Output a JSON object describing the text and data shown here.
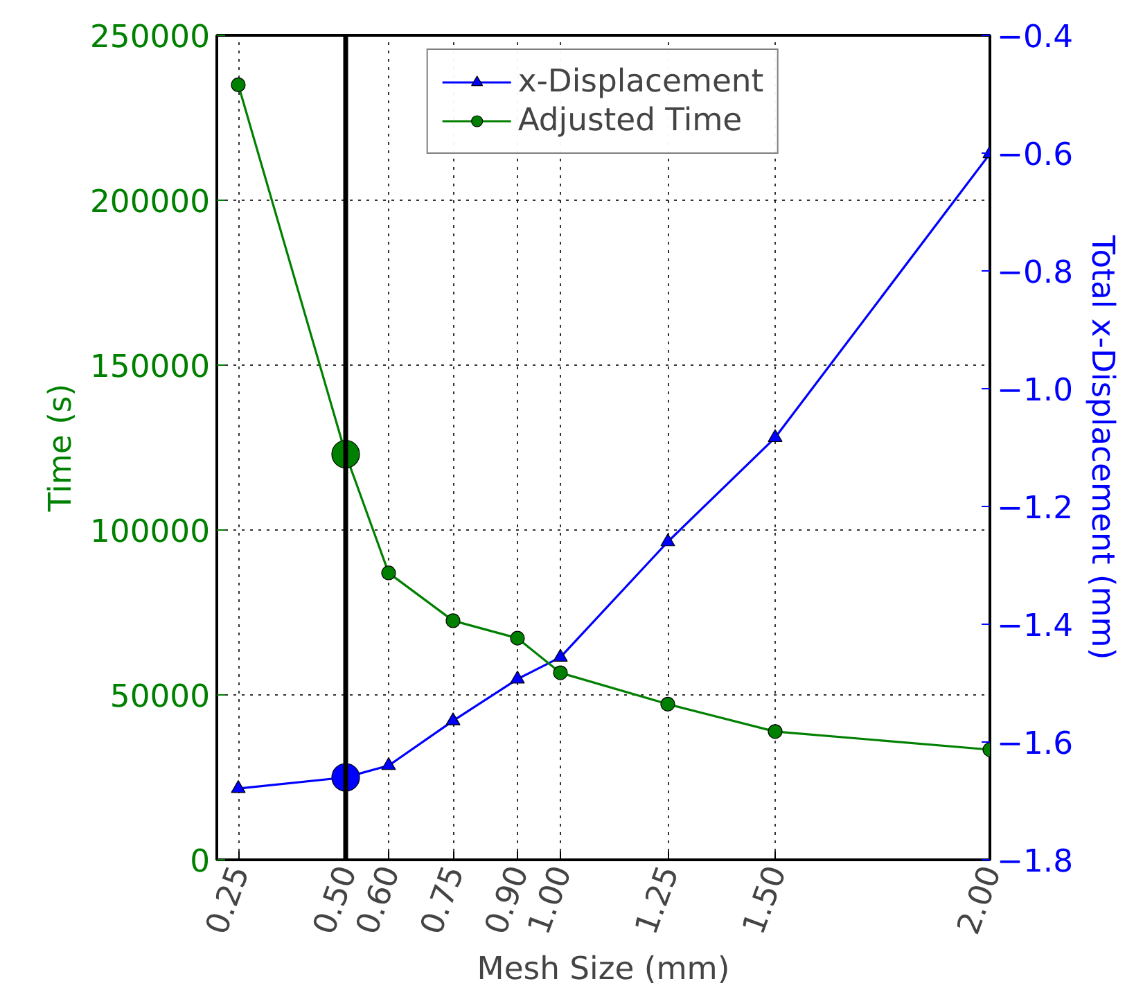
{
  "chart_data": {
    "type": "line",
    "xlabel": "Mesh Size (mm)",
    "ylabel": "Time (s)",
    "y2label": "Total x-Displacement (mm)",
    "x": [
      0.25,
      0.5,
      0.6,
      0.75,
      0.9,
      1.0,
      1.25,
      1.5,
      2.0
    ],
    "series": [
      {
        "name": "x-Displacement",
        "color": "#0000ff",
        "axis": "y2",
        "marker": "triangle",
        "values": [
          -1.679,
          -1.66,
          -1.64,
          -1.564,
          -1.493,
          -1.456,
          -1.26,
          -1.083,
          -0.601
        ]
      },
      {
        "name": "Adjusted Time",
        "color": "#008000",
        "marker": "circle",
        "values": [
          235000,
          123000,
          87000,
          72500,
          67200,
          56700,
          47200,
          38900,
          33400
        ]
      },
      {
        "type": "scatter",
        "color": "#0000ff",
        "axis": "y2",
        "marker": "circle",
        "x": [
          0.5
        ],
        "values": [
          -1.66
        ]
      },
      {
        "type": "scatter",
        "color": "#008000",
        "marker": "circle",
        "x": [
          0.5
        ],
        "values": [
          123000
        ]
      }
    ],
    "xlim": [
      0.2,
      2.0
    ],
    "xticks": [
      {
        "value": 0.25,
        "label": "0.25"
      },
      {
        "value": 0.5,
        "label": "0.50"
      },
      {
        "value": 0.6,
        "label": "0.60"
      },
      {
        "value": 0.75,
        "label": "0.75"
      },
      {
        "value": 0.9,
        "label": "0.90"
      },
      {
        "value": 1.0,
        "label": "1.00"
      },
      {
        "value": 1.25,
        "label": "1.25"
      },
      {
        "value": 1.5,
        "label": "1.50"
      },
      {
        "value": 2.0,
        "label": "2.00"
      }
    ],
    "ylim": [
      0,
      250000
    ],
    "yticks": [
      0,
      50000,
      100000,
      150000,
      200000,
      250000
    ],
    "y2lim": [
      -1.8,
      -0.4
    ],
    "y2ticks": [
      {
        "value": -1.8,
        "label": "−1.8"
      },
      {
        "value": -1.6,
        "label": "−1.6"
      },
      {
        "value": -1.4,
        "label": "−1.4"
      },
      {
        "value": -1.2,
        "label": "−1.2"
      },
      {
        "value": -1.0,
        "label": "−1.0"
      },
      {
        "value": -0.8,
        "label": "−0.8"
      },
      {
        "value": -0.6,
        "label": "−0.6"
      },
      {
        "value": -0.4,
        "label": "−0.4"
      }
    ],
    "ref_lines": [
      {
        "axis": "x",
        "value": 0.5,
        "color": "#000000"
      }
    ],
    "grid": true,
    "legend": "top",
    "line_style": "solid"
  }
}
